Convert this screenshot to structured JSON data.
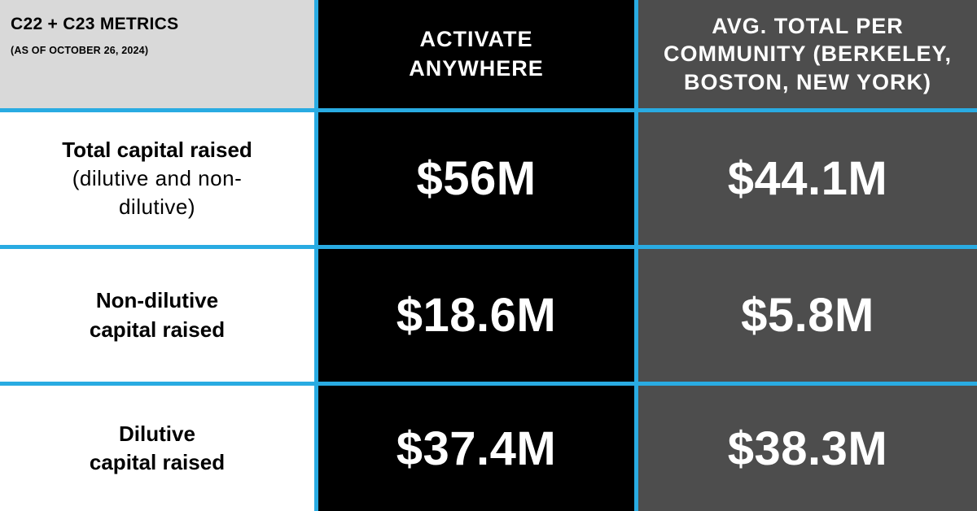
{
  "header": {
    "title": "C22 + C23 METRICS",
    "subtitle": "(AS OF OCTOBER 26, 2024)",
    "col1": "ACTIVATE ANYWHERE",
    "col2": "AVG. TOTAL PER COMMUNITY (BERKELEY, BOSTON, NEW YORK)"
  },
  "rows": [
    {
      "label": "Total capital raised",
      "note": "(dilutive and non-dilutive)",
      "activate": "$56M",
      "avg": "$44.1M"
    },
    {
      "label_line1": "Non-dilutive",
      "label_line2": "capital raised",
      "activate": "$18.6M",
      "avg": "$5.8M"
    },
    {
      "label_line1": "Dilutive",
      "label_line2": "capital raised",
      "activate": "$37.4M",
      "avg": "$38.3M"
    }
  ],
  "colors": {
    "divider": "#29abe2",
    "corner_bg": "#d9d9d9",
    "col1_bg": "#000000",
    "col2_bg": "#4d4d4d",
    "label_bg": "#ffffff"
  }
}
